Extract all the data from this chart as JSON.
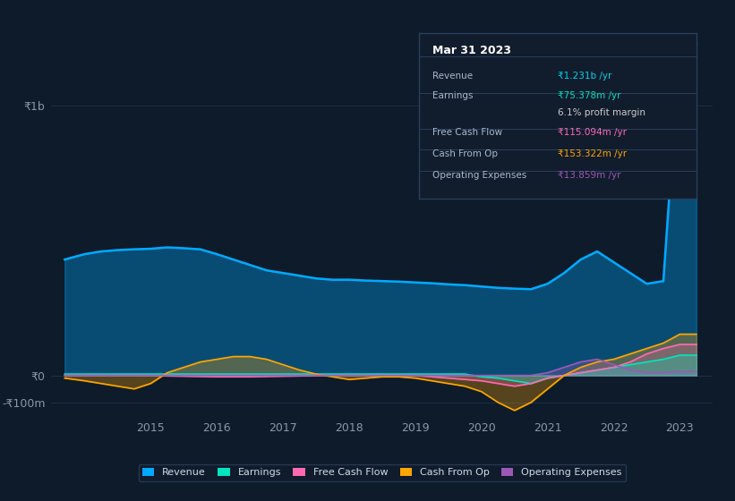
{
  "bg_color": "#0d1b2a",
  "plot_bg_color": "#0d1b2a",
  "grid_color": "#1e3048",
  "ylim": [
    -150,
    1300
  ],
  "yticks": [
    -100,
    0,
    1000
  ],
  "ytick_labels": [
    "-₹100m",
    "₹0",
    "₹1b"
  ],
  "xlim": [
    2013.5,
    2023.5
  ],
  "xticks": [
    2015,
    2016,
    2017,
    2018,
    2019,
    2020,
    2021,
    2022,
    2023
  ],
  "years": [
    2013.7,
    2014.0,
    2014.25,
    2014.5,
    2014.75,
    2015.0,
    2015.25,
    2015.5,
    2015.75,
    2016.0,
    2016.25,
    2016.5,
    2016.75,
    2017.0,
    2017.25,
    2017.5,
    2017.75,
    2018.0,
    2018.25,
    2018.5,
    2018.75,
    2019.0,
    2019.25,
    2019.5,
    2019.75,
    2020.0,
    2020.25,
    2020.5,
    2020.75,
    2021.0,
    2021.25,
    2021.5,
    2021.75,
    2022.0,
    2022.25,
    2022.5,
    2022.75,
    2023.0,
    2023.25
  ],
  "revenue": [
    430,
    450,
    460,
    465,
    468,
    470,
    475,
    472,
    468,
    450,
    430,
    410,
    390,
    380,
    370,
    360,
    355,
    355,
    352,
    350,
    348,
    345,
    342,
    338,
    335,
    330,
    325,
    322,
    320,
    340,
    380,
    430,
    460,
    420,
    380,
    340,
    350,
    1231,
    1231
  ],
  "earnings": [
    5,
    5,
    5,
    5,
    5,
    5,
    5,
    5,
    5,
    5,
    5,
    5,
    5,
    5,
    5,
    5,
    5,
    5,
    5,
    5,
    5,
    5,
    5,
    5,
    5,
    -5,
    -10,
    -20,
    -30,
    -10,
    0,
    10,
    20,
    30,
    40,
    50,
    60,
    75,
    75
  ],
  "free_cash": [
    0,
    0,
    0,
    0,
    0,
    0,
    -2,
    -3,
    -4,
    -5,
    -5,
    -5,
    -4,
    -3,
    -2,
    -1,
    0,
    0,
    0,
    0,
    0,
    0,
    -5,
    -10,
    -15,
    -20,
    -30,
    -40,
    -30,
    -10,
    0,
    10,
    20,
    30,
    50,
    80,
    100,
    115,
    115
  ],
  "cash_from_op": [
    -10,
    -20,
    -30,
    -40,
    -50,
    -30,
    10,
    30,
    50,
    60,
    70,
    70,
    60,
    40,
    20,
    5,
    -5,
    -15,
    -10,
    -5,
    -5,
    -10,
    -20,
    -30,
    -40,
    -60,
    -100,
    -130,
    -100,
    -50,
    0,
    30,
    50,
    60,
    80,
    100,
    120,
    153,
    153
  ],
  "op_expenses": [
    0,
    0,
    0,
    0,
    0,
    0,
    0,
    0,
    0,
    0,
    0,
    0,
    0,
    0,
    0,
    0,
    0,
    0,
    0,
    0,
    0,
    0,
    0,
    0,
    0,
    0,
    0,
    0,
    0,
    10,
    30,
    50,
    60,
    40,
    20,
    10,
    10,
    14,
    14
  ],
  "revenue_color": "#00aaff",
  "earnings_color": "#00e5c0",
  "free_cash_color": "#ff69b4",
  "cash_from_op_color": "#ffa500",
  "op_expenses_color": "#9b59b6",
  "legend_bg": "#111c2d",
  "legend_border": "#2a3f5f",
  "tooltip_rows": [
    {
      "label": "Revenue",
      "value": "₹1.231b /yr",
      "value_color": "#00d4e8"
    },
    {
      "label": "Earnings",
      "value": "₹75.378m /yr",
      "value_color": "#00e5c0"
    },
    {
      "label": "",
      "value": "6.1% profit margin",
      "value_color": "#cccccc"
    },
    {
      "label": "Free Cash Flow",
      "value": "₹115.094m /yr",
      "value_color": "#ff69b4"
    },
    {
      "label": "Cash From Op",
      "value": "₹153.322m /yr",
      "value_color": "#ffa500"
    },
    {
      "label": "Operating Expenses",
      "value": "₹13.859m /yr",
      "value_color": "#9b59b6"
    }
  ]
}
